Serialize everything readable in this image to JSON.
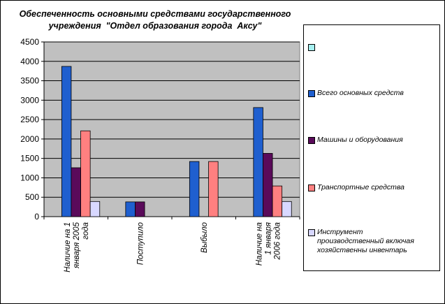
{
  "chart_data": {
    "type": "bar",
    "title_lines": [
      "Обеспеченность основными средствами государственного",
      "учреждения  \"Отдел образования города  Аксу\""
    ],
    "categories": [
      [
        "Наличие на 1",
        "января 2005",
        "года"
      ],
      [
        "Поступило"
      ],
      [
        "Выбыло"
      ],
      [
        "Наличие на",
        "1 января",
        "2006 года"
      ]
    ],
    "series": [
      {
        "name": "",
        "color": "#a6f0f0",
        "values": [
          0,
          0,
          0,
          0
        ]
      },
      {
        "name": "Всего основных средств",
        "color": "#1f5fcf",
        "values": [
          3870,
          380,
          1420,
          2810
        ]
      },
      {
        "name": "Машины и оборудования",
        "color": "#5a0a5a",
        "values": [
          1260,
          380,
          0,
          1630
        ]
      },
      {
        "name": "Транспортные средства",
        "color": "#ff8080",
        "values": [
          2210,
          0,
          1420,
          790
        ]
      },
      {
        "name": "Инструмент производственный включая хозяйственны инвентарь",
        "color": "#d8d8ff",
        "values": [
          390,
          0,
          0,
          390
        ]
      }
    ],
    "legend_lines": [
      [
        ""
      ],
      [
        "Всего основных средств"
      ],
      [
        "Машины и оборудования"
      ],
      [
        "Транспортные средства"
      ],
      [
        "Инструмент",
        "производственный включая",
        "хозяйственны инвентарь"
      ]
    ],
    "yticks": [
      "0",
      "500",
      "1000",
      "1500",
      "2000",
      "2500",
      "3000",
      "3500",
      "4000",
      "4500"
    ],
    "ylim": [
      0,
      4500
    ],
    "grid": true,
    "legend_position": "right"
  }
}
